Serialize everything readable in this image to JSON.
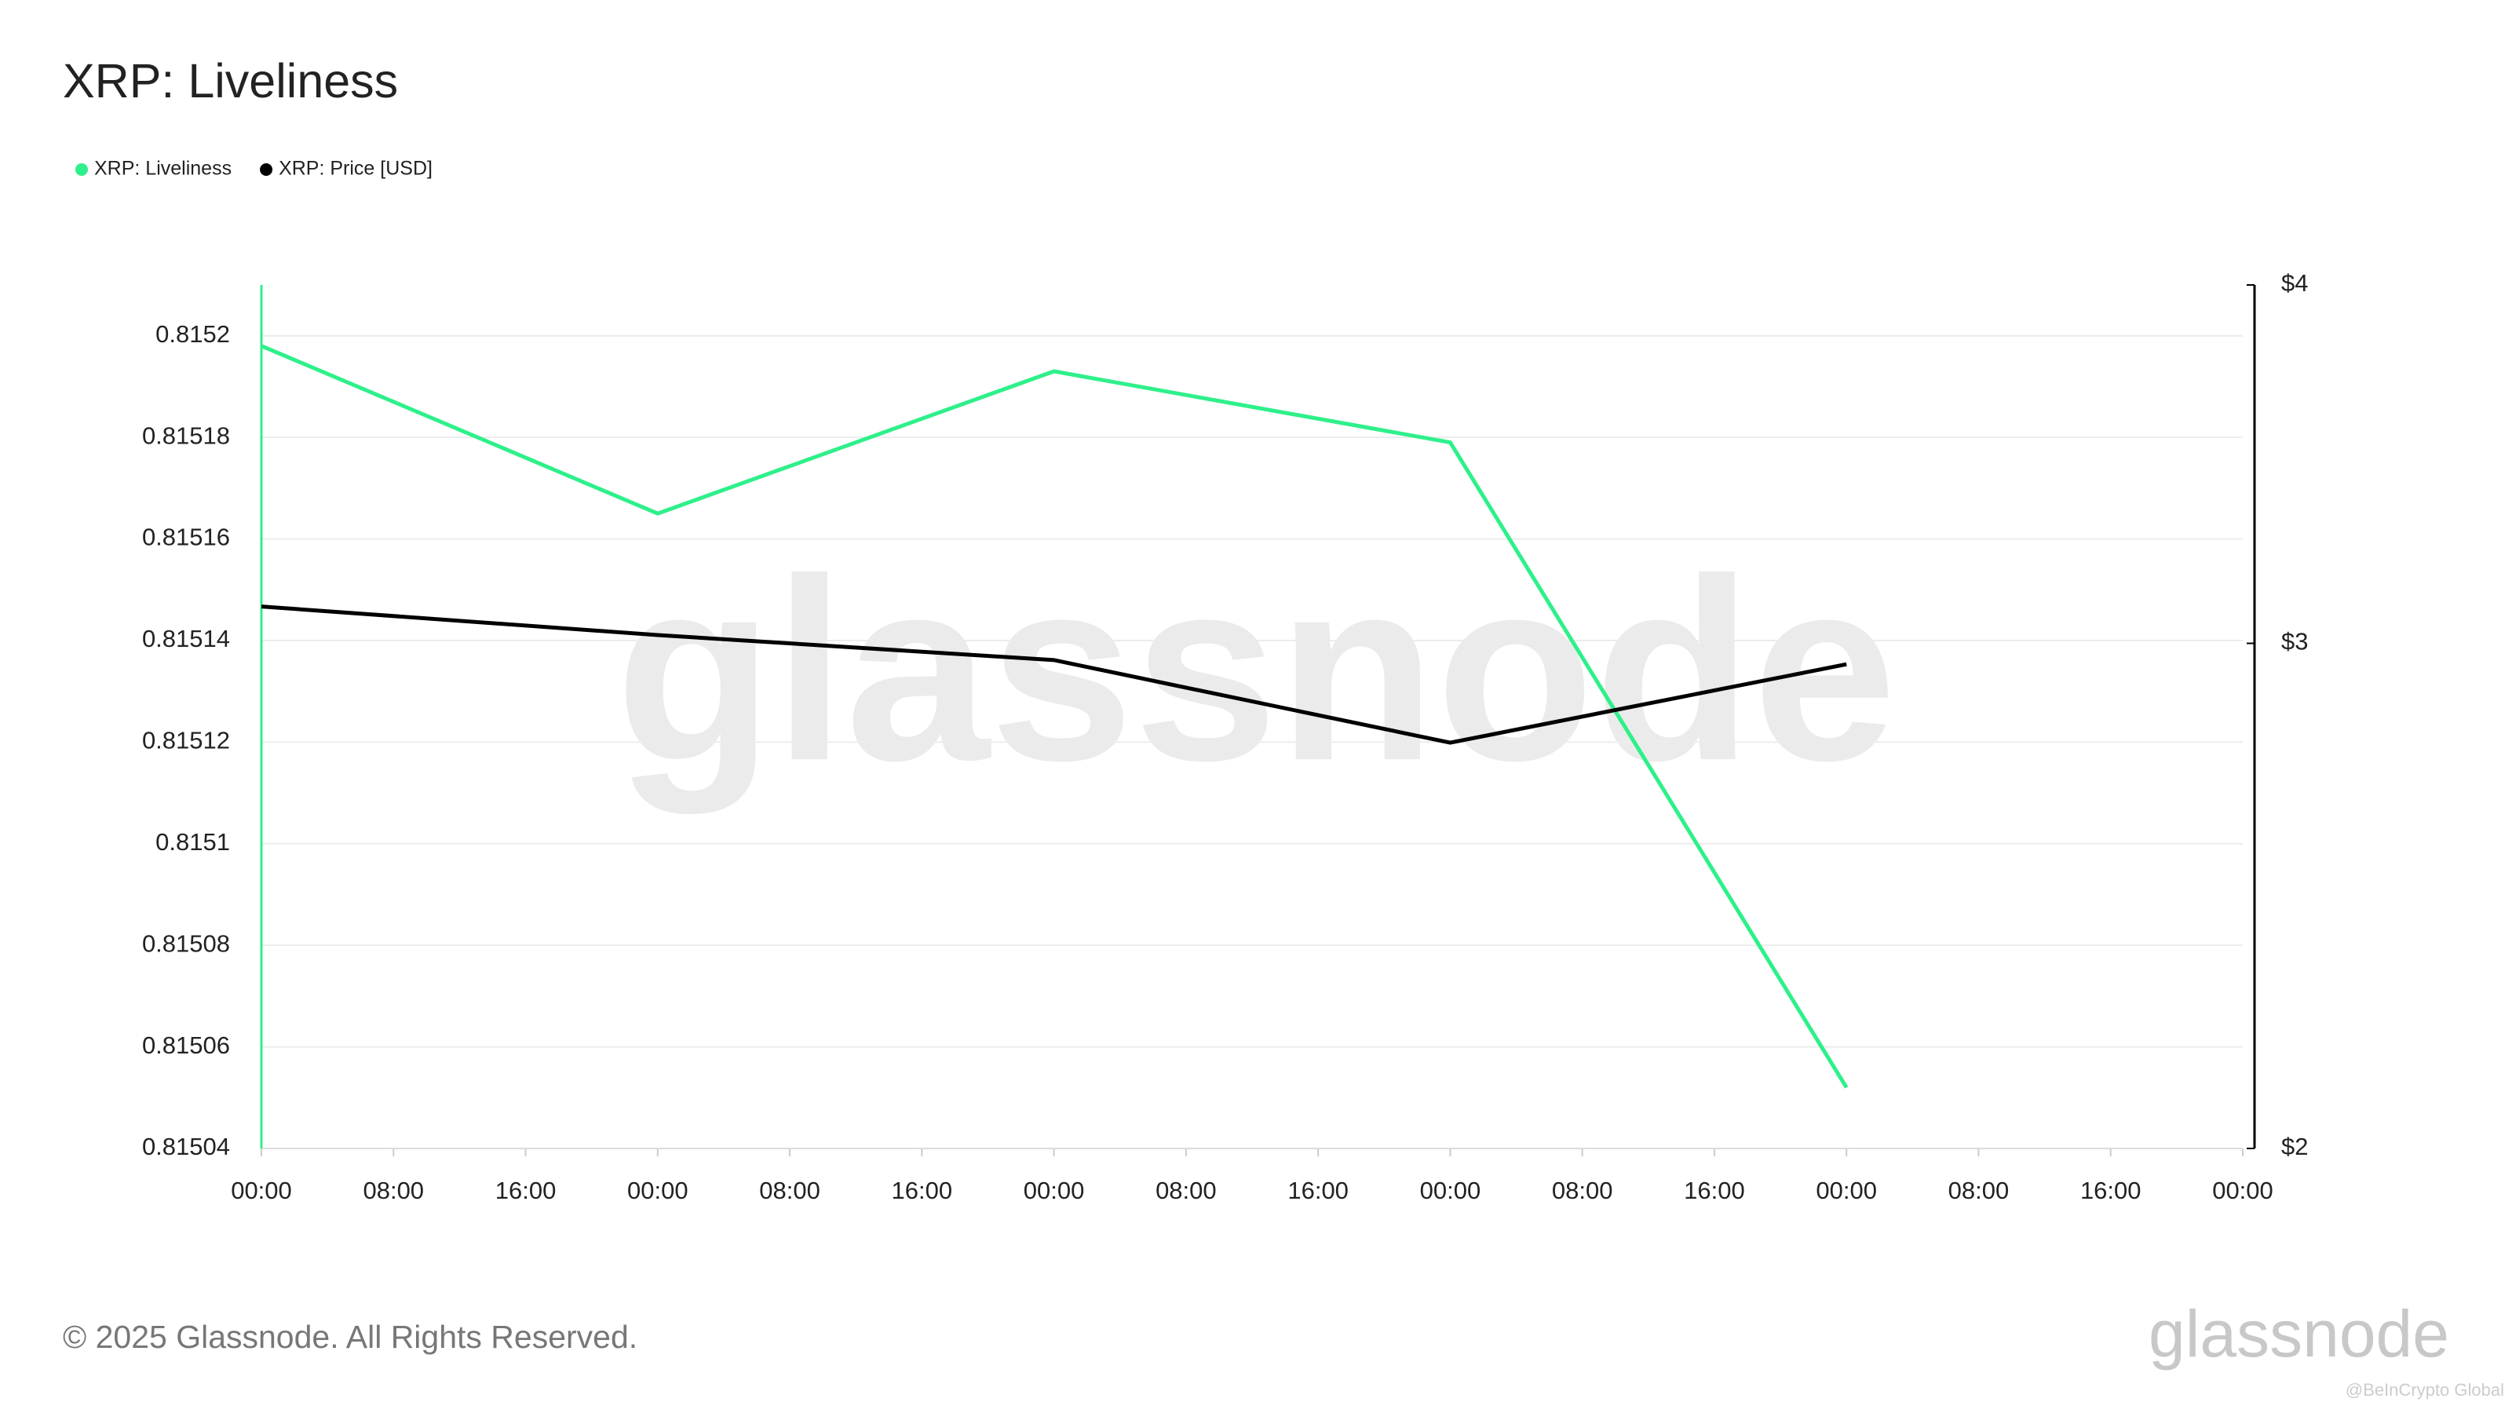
{
  "chart_data": {
    "type": "line",
    "title": "XRP: Liveliness",
    "x": [
      0,
      24,
      48,
      72,
      96
    ],
    "xlim": [
      0,
      120
    ],
    "xticks": [
      {
        "value": 0,
        "label": "00:00"
      },
      {
        "value": 8,
        "label": "08:00"
      },
      {
        "value": 16,
        "label": "16:00"
      },
      {
        "value": 24,
        "label": "00:00"
      },
      {
        "value": 32,
        "label": "08:00"
      },
      {
        "value": 40,
        "label": "16:00"
      },
      {
        "value": 48,
        "label": "00:00"
      },
      {
        "value": 56,
        "label": "08:00"
      },
      {
        "value": 64,
        "label": "16:00"
      },
      {
        "value": 72,
        "label": "00:00"
      },
      {
        "value": 80,
        "label": "08:00"
      },
      {
        "value": 88,
        "label": "16:00"
      },
      {
        "value": 96,
        "label": "00:00"
      },
      {
        "value": 104,
        "label": "08:00"
      },
      {
        "value": 112,
        "label": "16:00"
      },
      {
        "value": 120,
        "label": "00:00"
      }
    ],
    "ylim": [
      0.81504,
      0.81521
    ],
    "yticks": [
      0.81504,
      0.81506,
      0.81508,
      0.8151,
      0.81512,
      0.81514,
      0.81516,
      0.81518,
      0.8152
    ],
    "y2lim": [
      2,
      4
    ],
    "y2scale": "log",
    "y2ticks": [
      {
        "value": 2,
        "label": "$2"
      },
      {
        "value": 3,
        "label": "$3"
      },
      {
        "value": 4,
        "label": "$4"
      }
    ],
    "grid": true,
    "series": [
      {
        "name": "XRP: Liveliness",
        "color": "#2ef08a",
        "values": [
          0.815198,
          0.815165,
          0.815193,
          0.815179,
          0.815052
        ]
      },
      {
        "name": "XRP: Price [USD]",
        "color": "#000000",
        "axis": "y2",
        "values": [
          3.09,
          3.02,
          2.96,
          2.77,
          2.95
        ]
      }
    ]
  },
  "watermark": "glassnode",
  "footer": "© 2025 Glassnode. All Rights Reserved.",
  "logo": "glassnode",
  "credit": "@BeInCrypto Global"
}
